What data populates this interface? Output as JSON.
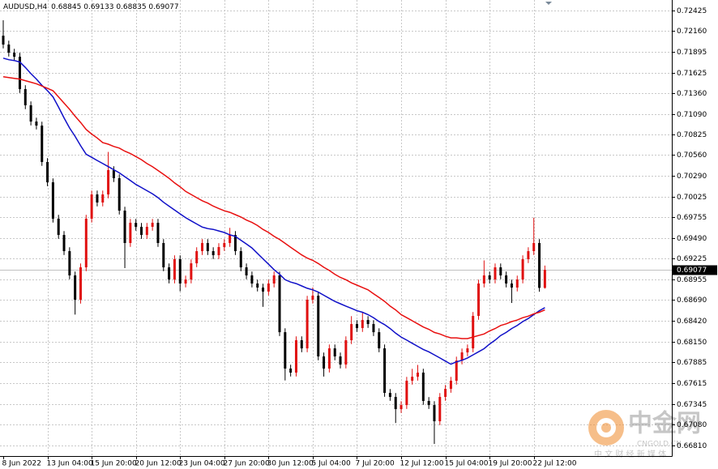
{
  "chart_data": {
    "type": "candlestick",
    "symbol": "AUDUSD,H4",
    "quote": {
      "open": 0.68845,
      "high": 0.69133,
      "low": 0.68835,
      "close": 0.69077
    },
    "last_price": 0.69077,
    "up_color": "#e01010",
    "down_color": "#000000",
    "grid": true,
    "ylim": [
      0.66674,
      0.72561
    ],
    "yticks": [
      0.72425,
      {
        "value": 0.7216,
        "label": "0.72160"
      },
      0.71895,
      0.71625,
      {
        "value": 0.7136,
        "label": "0.71360"
      },
      {
        "value": 0.7109,
        "label": "0.71090"
      },
      0.70825,
      {
        "value": 0.7056,
        "label": "0.70560"
      },
      {
        "value": 0.7029,
        "label": "0.70290"
      },
      0.70025,
      0.69755,
      {
        "value": 0.6949,
        "label": "0.69490"
      },
      0.69225,
      0.68955,
      {
        "value": 0.6869,
        "label": "0.68690"
      },
      {
        "value": 0.6842,
        "label": "0.68420"
      },
      {
        "value": 0.6815,
        "label": "0.68150"
      },
      0.67885,
      0.67615,
      0.67345,
      {
        "value": 0.6708,
        "label": "0.67080"
      },
      {
        "value": 0.6681,
        "label": "0.66810"
      }
    ],
    "categories": [
      "8 Jun 2022",
      null,
      null,
      null,
      null,
      null,
      null,
      null,
      "13 Jun 04:00",
      null,
      null,
      null,
      null,
      null,
      null,
      null,
      "15 Jun 20:00",
      null,
      null,
      null,
      null,
      null,
      null,
      null,
      "20 Jun 12:00",
      null,
      null,
      null,
      null,
      null,
      null,
      null,
      "23 Jun 04:00",
      null,
      null,
      null,
      null,
      null,
      null,
      null,
      "27 Jun 20:00",
      null,
      null,
      null,
      null,
      null,
      null,
      null,
      "30 Jun 12:00",
      null,
      null,
      null,
      null,
      null,
      null,
      null,
      "5 Jul 04:00",
      null,
      null,
      null,
      null,
      null,
      null,
      null,
      "7 Jul 20:00",
      null,
      null,
      null,
      null,
      null,
      null,
      null,
      "12 Jul 12:00",
      null,
      null,
      null,
      null,
      null,
      null,
      null,
      "15 Jul 04:00",
      null,
      null,
      null,
      null,
      null,
      null,
      null,
      "19 Jul 20:00",
      null,
      null,
      null,
      null,
      null,
      null,
      null,
      "22 Jul 12:00",
      null,
      null
    ],
    "open": [
      0.721,
      0.71986,
      0.71881,
      0.71829,
      0.71411,
      0.71202,
      0.70992,
      0.7094,
      0.7047,
      0.70208,
      0.69738,
      0.69528,
      0.69319,
      0.69006,
      0.68692,
      0.6911,
      0.69738,
      0.70051,
      0.69947,
      0.70051,
      0.70365,
      0.70261,
      0.69842,
      0.69424,
      0.69685,
      0.69633,
      0.69528,
      0.69633,
      0.69685,
      0.69424,
      0.6911,
      0.68953,
      0.69215,
      0.68901,
      0.68953,
      0.69162,
      0.69319,
      0.69424,
      0.69319,
      0.69267,
      0.69372,
      0.69424,
      0.69528,
      0.69319,
      0.6911,
      0.69006,
      0.68901,
      0.68849,
      0.68797,
      0.68901,
      0.69006,
      0.68273,
      0.67803,
      0.67751,
      0.68169,
      0.68064,
      0.68692,
      0.68744,
      0.6796,
      0.67803,
      0.68064,
      0.6796,
      0.67855,
      0.68169,
      0.68378,
      0.68326,
      0.6843,
      0.68378,
      0.68273,
      0.68064,
      0.67489,
      0.67437,
      0.6728,
      0.67332,
      0.67646,
      0.67698,
      0.67751,
      0.67385,
      0.67332,
      0.67123,
      0.67437,
      0.67541,
      0.67646,
      0.67907,
      0.68012,
      0.68064,
      0.68483,
      0.68901,
      0.69006,
      0.68953,
      0.6911,
      0.69006,
      0.68901,
      0.68849,
      0.68953,
      0.69215,
      0.69319,
      0.69424,
      0.68845
    ],
    "high": [
      0.723,
      0.72036,
      0.71931,
      0.71879,
      0.71461,
      0.71252,
      0.71042,
      0.7099,
      0.7052,
      0.70258,
      0.69788,
      0.69578,
      0.69369,
      0.69056,
      0.6916,
      0.69788,
      0.70101,
      0.70101,
      0.70101,
      0.706,
      0.70415,
      0.70311,
      0.69892,
      0.69735,
      0.69735,
      0.69683,
      0.69683,
      0.69735,
      0.69735,
      0.69474,
      0.6916,
      0.69265,
      0.69265,
      0.69003,
      0.69212,
      0.69369,
      0.69474,
      0.69474,
      0.69369,
      0.69422,
      0.69474,
      0.6962,
      0.69578,
      0.69369,
      0.6916,
      0.69056,
      0.68951,
      0.68899,
      0.68951,
      0.69056,
      0.69056,
      0.68323,
      0.67853,
      0.68219,
      0.68219,
      0.68742,
      0.6885,
      0.68794,
      0.6801,
      0.68114,
      0.68114,
      0.6801,
      0.68219,
      0.6848,
      0.68428,
      0.6853,
      0.6848,
      0.68428,
      0.68323,
      0.68114,
      0.67539,
      0.67487,
      0.67382,
      0.67696,
      0.678,
      0.6785,
      0.67801,
      0.67435,
      0.67382,
      0.67487,
      0.67591,
      0.67696,
      0.67957,
      0.68062,
      0.68114,
      0.68533,
      0.68951,
      0.692,
      0.69056,
      0.6916,
      0.6916,
      0.69056,
      0.68951,
      0.69003,
      0.69265,
      0.69369,
      0.6975,
      0.69474,
      0.69133
    ],
    "low": [
      0.71936,
      0.71831,
      0.71779,
      0.71361,
      0.71152,
      0.70942,
      0.7089,
      0.7042,
      0.70158,
      0.69688,
      0.69478,
      0.69269,
      0.68956,
      0.685,
      0.68642,
      0.6906,
      0.69688,
      0.69897,
      0.69897,
      0.70001,
      0.70211,
      0.69792,
      0.691,
      0.69374,
      0.69583,
      0.69478,
      0.69478,
      0.69583,
      0.69374,
      0.6906,
      0.68903,
      0.68903,
      0.688,
      0.68851,
      0.68903,
      0.69112,
      0.69269,
      0.69269,
      0.69217,
      0.69217,
      0.69322,
      0.69374,
      0.69269,
      0.6906,
      0.68956,
      0.68851,
      0.68799,
      0.686,
      0.68747,
      0.68851,
      0.68223,
      0.6765,
      0.67701,
      0.67701,
      0.68014,
      0.68014,
      0.68642,
      0.6791,
      0.677,
      0.67753,
      0.6791,
      0.67805,
      0.67805,
      0.68119,
      0.68276,
      0.68276,
      0.68328,
      0.68223,
      0.68014,
      0.67439,
      0.67387,
      0.671,
      0.6723,
      0.67282,
      0.67596,
      0.67648,
      0.67335,
      0.67282,
      0.6683,
      0.67073,
      0.67387,
      0.67491,
      0.67596,
      0.67857,
      0.67962,
      0.68014,
      0.68433,
      0.68851,
      0.68903,
      0.68903,
      0.68956,
      0.68851,
      0.6865,
      0.68799,
      0.68903,
      0.69165,
      0.69269,
      0.68795,
      0.68835
    ],
    "close": [
      0.71986,
      0.71881,
      0.71829,
      0.71411,
      0.71202,
      0.70992,
      0.7094,
      0.7047,
      0.70208,
      0.69738,
      0.69528,
      0.69319,
      0.69006,
      0.68692,
      0.6911,
      0.69738,
      0.70051,
      0.69947,
      0.70051,
      0.70365,
      0.70261,
      0.69842,
      0.69424,
      0.69685,
      0.69633,
      0.69528,
      0.69633,
      0.69685,
      0.69424,
      0.6911,
      0.68953,
      0.69215,
      0.68901,
      0.68953,
      0.69162,
      0.69319,
      0.69424,
      0.69319,
      0.69267,
      0.69372,
      0.69424,
      0.69528,
      0.69319,
      0.6911,
      0.69006,
      0.68901,
      0.68849,
      0.68797,
      0.68901,
      0.69006,
      0.68273,
      0.67803,
      0.67751,
      0.68169,
      0.68064,
      0.68692,
      0.68744,
      0.6796,
      0.67803,
      0.68064,
      0.6796,
      0.67855,
      0.68169,
      0.68378,
      0.68326,
      0.6843,
      0.68378,
      0.68273,
      0.68064,
      0.67489,
      0.67437,
      0.6728,
      0.67332,
      0.67646,
      0.67698,
      0.67751,
      0.67385,
      0.67332,
      0.67123,
      0.67437,
      0.67541,
      0.67646,
      0.67907,
      0.68012,
      0.68064,
      0.68483,
      0.68901,
      0.69006,
      0.68953,
      0.6911,
      0.69006,
      0.68901,
      0.68849,
      0.68953,
      0.69215,
      0.69319,
      0.69424,
      0.68845,
      0.69077
    ],
    "series": [
      {
        "color": "#1010c8",
        "values": [
          0.7181,
          0.7179,
          0.7178,
          0.7176,
          0.7169,
          0.7161,
          0.7154,
          0.7146,
          0.7139,
          0.7131,
          0.7118,
          0.7104,
          0.7091,
          0.708,
          0.7068,
          0.7057,
          0.7053,
          0.7049,
          0.7045,
          0.7041,
          0.7037,
          0.7033,
          0.7028,
          0.7023,
          0.7018,
          0.7014,
          0.701,
          0.7006,
          0.7001,
          0.6995,
          0.699,
          0.6985,
          0.698,
          0.6975,
          0.6971,
          0.6967,
          0.6963,
          0.6961,
          0.696,
          0.6958,
          0.6956,
          0.6953,
          0.6951,
          0.6946,
          0.6941,
          0.6936,
          0.6929,
          0.6922,
          0.6915,
          0.6908,
          0.6902,
          0.6895,
          0.6892,
          0.689,
          0.6887,
          0.6884,
          0.6882,
          0.6879,
          0.6875,
          0.6871,
          0.6867,
          0.6864,
          0.6861,
          0.6858,
          0.6855,
          0.6853,
          0.685,
          0.6846,
          0.6841,
          0.6837,
          0.6832,
          0.6826,
          0.6821,
          0.6817,
          0.6813,
          0.6809,
          0.6805,
          0.6802,
          0.6798,
          0.6794,
          0.679,
          0.6786,
          0.6789,
          0.6791,
          0.6794,
          0.6798,
          0.6802,
          0.6806,
          0.6812,
          0.6817,
          0.6823,
          0.6827,
          0.6832,
          0.6836,
          0.6841,
          0.6845,
          0.685,
          0.6855,
          0.6859
        ]
      },
      {
        "color": "#e81010",
        "values": [
          0.7157,
          0.7156,
          0.7155,
          0.7154,
          0.7152,
          0.715,
          0.7148,
          0.7145,
          0.7142,
          0.7139,
          0.7131,
          0.7123,
          0.7115,
          0.7106,
          0.7098,
          0.7089,
          0.7083,
          0.7078,
          0.7072,
          0.707,
          0.7067,
          0.7065,
          0.7061,
          0.7058,
          0.7054,
          0.705,
          0.7045,
          0.7041,
          0.7036,
          0.7031,
          0.7026,
          0.702,
          0.7015,
          0.7009,
          0.7005,
          0.7001,
          0.6997,
          0.6994,
          0.699,
          0.6987,
          0.6984,
          0.6982,
          0.6979,
          0.6976,
          0.6972,
          0.6969,
          0.6965,
          0.696,
          0.6956,
          0.6951,
          0.6947,
          0.6942,
          0.6937,
          0.6932,
          0.6927,
          0.6923,
          0.692,
          0.6916,
          0.6911,
          0.6907,
          0.6902,
          0.6898,
          0.6895,
          0.6891,
          0.6888,
          0.6885,
          0.6882,
          0.6877,
          0.6872,
          0.6867,
          0.6861,
          0.6856,
          0.685,
          0.6846,
          0.6842,
          0.6838,
          0.6834,
          0.6831,
          0.6827,
          0.6825,
          0.6822,
          0.682,
          0.682,
          0.6819,
          0.6819,
          0.6821,
          0.6823,
          0.6825,
          0.6829,
          0.6832,
          0.6836,
          0.6838,
          0.6841,
          0.6843,
          0.6846,
          0.6848,
          0.6851,
          0.6853,
          0.6856
        ]
      }
    ],
    "watermark": {
      "name": "中金网",
      "domain": "CNGOLD.CN",
      "tagline": "中 文 财 经 新 媒 体"
    }
  }
}
